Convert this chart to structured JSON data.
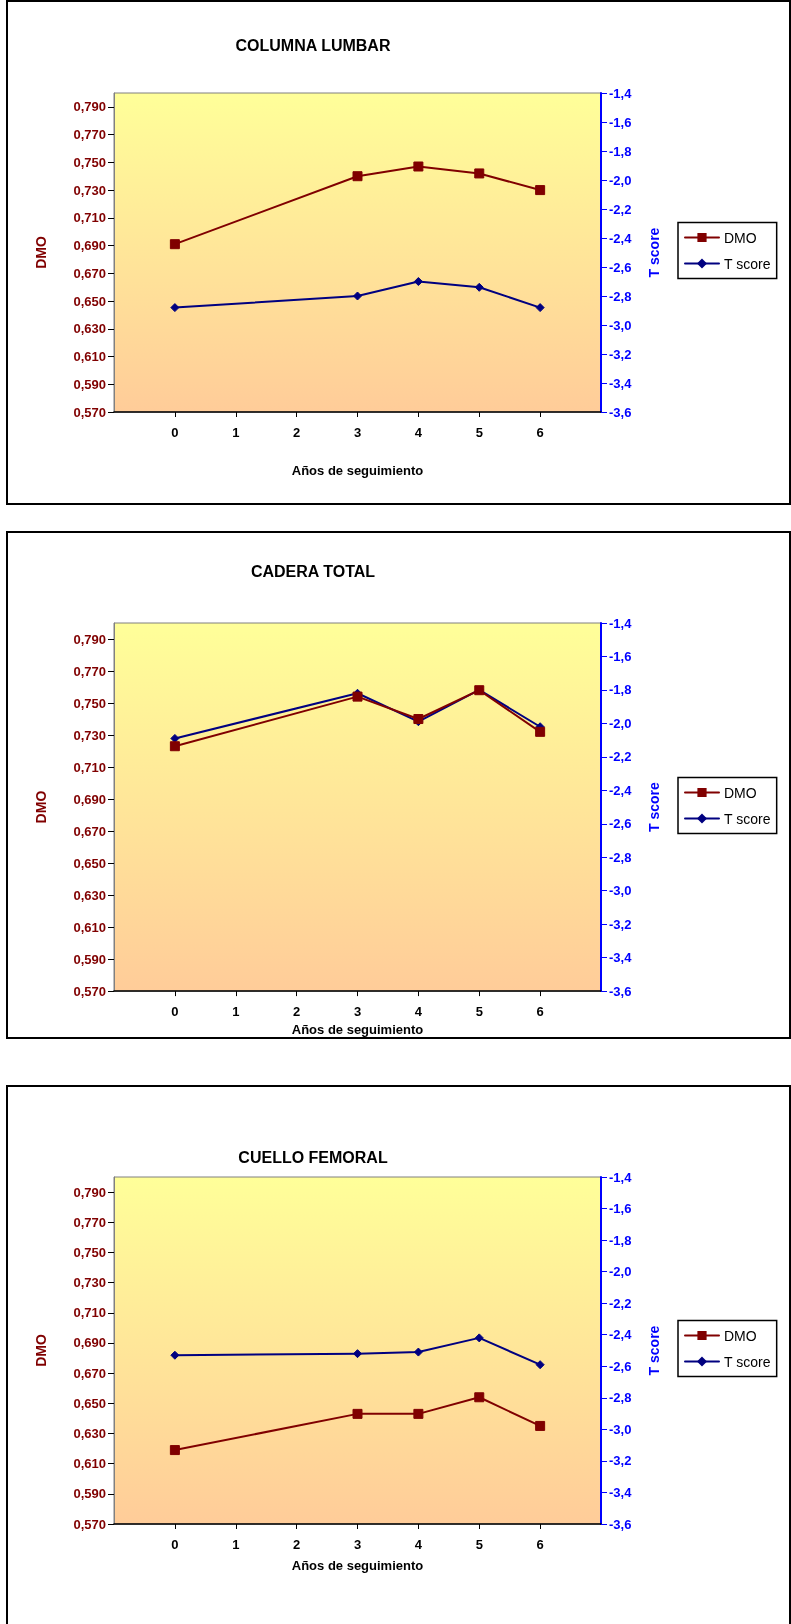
{
  "chart_data": [
    {
      "type": "line",
      "title": "COLUMNA LUMBAR",
      "xlabel": "Años de seguimiento",
      "ylabel": "DMO",
      "y2label": "T score",
      "legend": "right",
      "grid": false,
      "x": [
        0,
        3,
        4,
        5,
        6
      ],
      "xlim": [
        -1,
        7
      ],
      "xticks": [
        0,
        1,
        2,
        3,
        4,
        5,
        6
      ],
      "ylim": [
        0.57,
        0.8
      ],
      "yticks": [
        {
          "value": 0.57,
          "label": "0,570"
        },
        {
          "value": 0.59,
          "label": "0,590"
        },
        {
          "value": 0.61,
          "label": "0,610"
        },
        {
          "value": 0.63,
          "label": "0,630"
        },
        {
          "value": 0.65,
          "label": "0,650"
        },
        {
          "value": 0.67,
          "label": "0,670"
        },
        {
          "value": 0.69,
          "label": "0,690"
        },
        {
          "value": 0.71,
          "label": "0,710"
        },
        {
          "value": 0.73,
          "label": "0,730"
        },
        {
          "value": 0.75,
          "label": "0,750"
        },
        {
          "value": 0.77,
          "label": "0,770"
        },
        {
          "value": 0.79,
          "label": "0,790"
        }
      ],
      "y2lim": [
        -3.6,
        -1.4
      ],
      "y2ticks": [
        {
          "value": -3.6,
          "label": "-3,6"
        },
        {
          "value": -3.4,
          "label": "-3,4"
        },
        {
          "value": -3.2,
          "label": "-3,2"
        },
        {
          "value": -3.0,
          "label": "-3,0"
        },
        {
          "value": -2.8,
          "label": "-2,8"
        },
        {
          "value": -2.6,
          "label": "-2,6"
        },
        {
          "value": -2.4,
          "label": "-2,4"
        },
        {
          "value": -2.2,
          "label": "-2,2"
        },
        {
          "value": -2.0,
          "label": "-2,0"
        },
        {
          "value": -1.8,
          "label": "-1,8"
        },
        {
          "value": -1.6,
          "label": "-1,6"
        },
        {
          "value": -1.4,
          "label": "-1,4"
        }
      ],
      "series": [
        {
          "name": "DMO",
          "color": "#800000",
          "marker": "square",
          "values": [
            0.691,
            0.74,
            0.747,
            0.742,
            0.73
          ]
        },
        {
          "name": "T score",
          "color": "#000080",
          "marker": "diamond",
          "axis": "y2",
          "values": [
            -2.88,
            -2.8,
            -2.7,
            -2.74,
            -2.88
          ]
        }
      ]
    },
    {
      "type": "line",
      "title": "CADERA TOTAL",
      "xlabel": "Años de seguimiento",
      "ylabel": "DMO",
      "y2label": "T score",
      "legend": "right",
      "grid": false,
      "x": [
        0,
        3,
        4,
        5,
        6
      ],
      "xlim": [
        -1,
        7
      ],
      "xticks": [
        0,
        1,
        2,
        3,
        4,
        5,
        6
      ],
      "ylim": [
        0.57,
        0.8
      ],
      "yticks": [
        {
          "value": 0.57,
          "label": "0,570"
        },
        {
          "value": 0.59,
          "label": "0,590"
        },
        {
          "value": 0.61,
          "label": "0,610"
        },
        {
          "value": 0.63,
          "label": "0,630"
        },
        {
          "value": 0.65,
          "label": "0,650"
        },
        {
          "value": 0.67,
          "label": "0,670"
        },
        {
          "value": 0.69,
          "label": "0,690"
        },
        {
          "value": 0.71,
          "label": "0,710"
        },
        {
          "value": 0.73,
          "label": "0,730"
        },
        {
          "value": 0.75,
          "label": "0,750"
        },
        {
          "value": 0.77,
          "label": "0,770"
        },
        {
          "value": 0.79,
          "label": "0,790"
        }
      ],
      "y2lim": [
        -3.6,
        -1.4
      ],
      "y2ticks": [
        {
          "value": -3.6,
          "label": "-3,6"
        },
        {
          "value": -3.4,
          "label": "-3,4"
        },
        {
          "value": -3.2,
          "label": "-3,2"
        },
        {
          "value": -3.0,
          "label": "-3,0"
        },
        {
          "value": -2.8,
          "label": "-2,8"
        },
        {
          "value": -2.6,
          "label": "-2,6"
        },
        {
          "value": -2.4,
          "label": "-2,4"
        },
        {
          "value": -2.2,
          "label": "-2,2"
        },
        {
          "value": -2.0,
          "label": "-2,0"
        },
        {
          "value": -1.8,
          "label": "-1,8"
        },
        {
          "value": -1.6,
          "label": "-1,6"
        },
        {
          "value": -1.4,
          "label": "-1,4"
        }
      ],
      "series": [
        {
          "name": "DMO",
          "color": "#800000",
          "marker": "square",
          "values": [
            0.723,
            0.754,
            0.74,
            0.758,
            0.732
          ]
        },
        {
          "name": "T score",
          "color": "#000080",
          "marker": "diamond",
          "axis": "y2",
          "values": [
            -2.09,
            -1.82,
            -1.99,
            -1.8,
            -2.02
          ]
        }
      ]
    },
    {
      "type": "line",
      "title": "CUELLO FEMORAL",
      "xlabel": "Años de seguimiento",
      "ylabel": "DMO",
      "y2label": "T score",
      "legend": "right",
      "grid": false,
      "x": [
        0,
        3,
        4,
        5,
        6
      ],
      "xlim": [
        -1,
        7
      ],
      "xticks": [
        0,
        1,
        2,
        3,
        4,
        5,
        6
      ],
      "ylim": [
        0.57,
        0.8
      ],
      "yticks": [
        {
          "value": 0.57,
          "label": "0,570"
        },
        {
          "value": 0.59,
          "label": "0,590"
        },
        {
          "value": 0.61,
          "label": "0,610"
        },
        {
          "value": 0.63,
          "label": "0,630"
        },
        {
          "value": 0.65,
          "label": "0,650"
        },
        {
          "value": 0.67,
          "label": "0,670"
        },
        {
          "value": 0.69,
          "label": "0,690"
        },
        {
          "value": 0.71,
          "label": "0,710"
        },
        {
          "value": 0.73,
          "label": "0,730"
        },
        {
          "value": 0.75,
          "label": "0,750"
        },
        {
          "value": 0.77,
          "label": "0,770"
        },
        {
          "value": 0.79,
          "label": "0,790"
        }
      ],
      "y2lim": [
        -3.6,
        -1.4
      ],
      "y2ticks": [
        {
          "value": -3.6,
          "label": "-3,6"
        },
        {
          "value": -3.4,
          "label": "-3,4"
        },
        {
          "value": -3.2,
          "label": "-3,2"
        },
        {
          "value": -3.0,
          "label": "-3,0"
        },
        {
          "value": -2.8,
          "label": "-2,8"
        },
        {
          "value": -2.6,
          "label": "-2,6"
        },
        {
          "value": -2.4,
          "label": "-2,4"
        },
        {
          "value": -2.2,
          "label": "-2,2"
        },
        {
          "value": -2.0,
          "label": "-2,0"
        },
        {
          "value": -1.8,
          "label": "-1,8"
        },
        {
          "value": -1.6,
          "label": "-1,6"
        },
        {
          "value": -1.4,
          "label": "-1,4"
        }
      ],
      "series": [
        {
          "name": "DMO",
          "color": "#800000",
          "marker": "square",
          "values": [
            0.619,
            0.643,
            0.643,
            0.654,
            0.635
          ]
        },
        {
          "name": "T score",
          "color": "#000080",
          "marker": "diamond",
          "axis": "y2",
          "values": [
            -2.53,
            -2.52,
            -2.51,
            -2.42,
            -2.59
          ]
        }
      ]
    }
  ]
}
